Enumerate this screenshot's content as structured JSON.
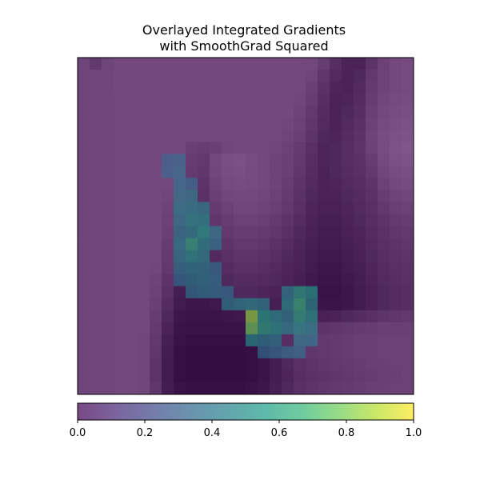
{
  "chart_data": {
    "type": "heatmap",
    "title_lines": [
      "Overlayed Integrated Gradients",
      "with SmoothGrad Squared"
    ],
    "grid": false,
    "colormap": "viridis",
    "overlay_alpha": 0.5,
    "heatmap": {
      "rows": 28,
      "cols": 28,
      "base_values": [
        [
          0.55,
          0.45,
          0.55,
          0.58,
          0.58,
          0.58,
          0.58,
          0.58,
          0.58,
          0.58,
          0.58,
          0.58,
          0.58,
          0.58,
          0.58,
          0.58,
          0.58,
          0.58,
          0.58,
          0.57,
          0.48,
          0.34,
          0.24,
          0.24,
          0.4,
          0.52,
          0.58,
          0.6
        ],
        [
          0.55,
          0.56,
          0.56,
          0.58,
          0.58,
          0.58,
          0.58,
          0.58,
          0.58,
          0.58,
          0.58,
          0.58,
          0.58,
          0.58,
          0.58,
          0.58,
          0.58,
          0.58,
          0.58,
          0.55,
          0.42,
          0.3,
          0.24,
          0.28,
          0.44,
          0.54,
          0.58,
          0.6
        ],
        [
          0.55,
          0.56,
          0.56,
          0.58,
          0.58,
          0.58,
          0.58,
          0.58,
          0.58,
          0.58,
          0.58,
          0.58,
          0.58,
          0.58,
          0.58,
          0.58,
          0.58,
          0.58,
          0.58,
          0.5,
          0.38,
          0.26,
          0.24,
          0.3,
          0.46,
          0.54,
          0.58,
          0.6
        ],
        [
          0.55,
          0.56,
          0.56,
          0.57,
          0.58,
          0.58,
          0.58,
          0.58,
          0.58,
          0.58,
          0.58,
          0.58,
          0.58,
          0.58,
          0.58,
          0.58,
          0.58,
          0.58,
          0.56,
          0.48,
          0.34,
          0.24,
          0.26,
          0.32,
          0.48,
          0.56,
          0.6,
          0.62
        ],
        [
          0.55,
          0.56,
          0.56,
          0.57,
          0.58,
          0.58,
          0.58,
          0.58,
          0.58,
          0.58,
          0.58,
          0.58,
          0.58,
          0.58,
          0.58,
          0.58,
          0.58,
          0.58,
          0.54,
          0.44,
          0.32,
          0.24,
          0.28,
          0.34,
          0.5,
          0.58,
          0.62,
          0.64
        ],
        [
          0.55,
          0.56,
          0.56,
          0.57,
          0.58,
          0.58,
          0.58,
          0.58,
          0.58,
          0.58,
          0.58,
          0.58,
          0.58,
          0.58,
          0.58,
          0.58,
          0.58,
          0.56,
          0.52,
          0.42,
          0.3,
          0.24,
          0.3,
          0.36,
          0.52,
          0.6,
          0.64,
          0.66
        ],
        [
          0.55,
          0.56,
          0.56,
          0.57,
          0.58,
          0.58,
          0.58,
          0.58,
          0.58,
          0.58,
          0.58,
          0.58,
          0.58,
          0.58,
          0.58,
          0.58,
          0.58,
          0.55,
          0.5,
          0.4,
          0.28,
          0.26,
          0.32,
          0.38,
          0.54,
          0.62,
          0.66,
          0.68
        ],
        [
          0.55,
          0.56,
          0.56,
          0.57,
          0.58,
          0.58,
          0.58,
          0.58,
          0.58,
          0.5,
          0.48,
          0.5,
          0.56,
          0.58,
          0.58,
          0.58,
          0.56,
          0.52,
          0.46,
          0.36,
          0.26,
          0.28,
          0.34,
          0.4,
          0.52,
          0.62,
          0.68,
          0.7
        ],
        [
          0.55,
          0.56,
          0.56,
          0.57,
          0.58,
          0.58,
          0.58,
          0.58,
          0.56,
          0.48,
          0.44,
          0.58,
          0.64,
          0.66,
          0.62,
          0.58,
          0.54,
          0.5,
          0.44,
          0.34,
          0.26,
          0.28,
          0.34,
          0.38,
          0.48,
          0.6,
          0.66,
          0.68
        ],
        [
          0.55,
          0.56,
          0.56,
          0.57,
          0.58,
          0.58,
          0.58,
          0.58,
          0.54,
          0.46,
          0.42,
          0.56,
          0.62,
          0.64,
          0.6,
          0.58,
          0.54,
          0.5,
          0.42,
          0.32,
          0.24,
          0.28,
          0.32,
          0.36,
          0.44,
          0.56,
          0.62,
          0.64
        ],
        [
          0.55,
          0.56,
          0.56,
          0.57,
          0.58,
          0.58,
          0.58,
          0.58,
          0.52,
          0.44,
          0.4,
          0.54,
          0.6,
          0.62,
          0.6,
          0.58,
          0.54,
          0.48,
          0.4,
          0.3,
          0.24,
          0.26,
          0.3,
          0.34,
          0.4,
          0.52,
          0.58,
          0.6
        ],
        [
          0.55,
          0.56,
          0.56,
          0.57,
          0.58,
          0.58,
          0.58,
          0.56,
          0.48,
          0.4,
          0.38,
          0.5,
          0.56,
          0.58,
          0.58,
          0.56,
          0.52,
          0.46,
          0.38,
          0.28,
          0.24,
          0.24,
          0.28,
          0.32,
          0.38,
          0.48,
          0.54,
          0.56
        ],
        [
          0.55,
          0.56,
          0.56,
          0.57,
          0.58,
          0.58,
          0.58,
          0.54,
          0.44,
          0.36,
          0.34,
          0.46,
          0.52,
          0.56,
          0.56,
          0.54,
          0.5,
          0.44,
          0.36,
          0.26,
          0.22,
          0.22,
          0.26,
          0.3,
          0.36,
          0.44,
          0.5,
          0.52
        ],
        [
          0.55,
          0.56,
          0.56,
          0.57,
          0.58,
          0.58,
          0.58,
          0.52,
          0.4,
          0.32,
          0.3,
          0.42,
          0.48,
          0.52,
          0.52,
          0.5,
          0.46,
          0.4,
          0.32,
          0.24,
          0.2,
          0.2,
          0.24,
          0.28,
          0.34,
          0.4,
          0.46,
          0.48
        ],
        [
          0.55,
          0.56,
          0.56,
          0.57,
          0.58,
          0.58,
          0.58,
          0.5,
          0.36,
          0.28,
          0.28,
          0.38,
          0.44,
          0.48,
          0.48,
          0.46,
          0.42,
          0.36,
          0.28,
          0.22,
          0.18,
          0.18,
          0.22,
          0.26,
          0.32,
          0.38,
          0.42,
          0.44
        ],
        [
          0.55,
          0.56,
          0.56,
          0.57,
          0.58,
          0.58,
          0.58,
          0.48,
          0.32,
          0.24,
          0.24,
          0.34,
          0.4,
          0.44,
          0.44,
          0.42,
          0.38,
          0.32,
          0.26,
          0.2,
          0.16,
          0.16,
          0.2,
          0.24,
          0.3,
          0.36,
          0.4,
          0.42
        ],
        [
          0.55,
          0.56,
          0.56,
          0.57,
          0.58,
          0.58,
          0.58,
          0.46,
          0.28,
          0.22,
          0.22,
          0.3,
          0.36,
          0.4,
          0.4,
          0.38,
          0.34,
          0.28,
          0.24,
          0.18,
          0.14,
          0.14,
          0.18,
          0.22,
          0.28,
          0.34,
          0.38,
          0.4
        ],
        [
          0.55,
          0.56,
          0.56,
          0.57,
          0.58,
          0.58,
          0.56,
          0.44,
          0.24,
          0.18,
          0.2,
          0.26,
          0.32,
          0.36,
          0.36,
          0.34,
          0.3,
          0.26,
          0.22,
          0.16,
          0.12,
          0.12,
          0.16,
          0.2,
          0.26,
          0.32,
          0.36,
          0.38
        ],
        [
          0.55,
          0.56,
          0.56,
          0.57,
          0.58,
          0.58,
          0.54,
          0.4,
          0.2,
          0.16,
          0.18,
          0.22,
          0.28,
          0.32,
          0.32,
          0.3,
          0.28,
          0.24,
          0.2,
          0.14,
          0.1,
          0.1,
          0.14,
          0.18,
          0.24,
          0.3,
          0.34,
          0.36
        ],
        [
          0.55,
          0.56,
          0.56,
          0.57,
          0.58,
          0.58,
          0.52,
          0.36,
          0.18,
          0.14,
          0.16,
          0.2,
          0.24,
          0.28,
          0.28,
          0.26,
          0.24,
          0.22,
          0.18,
          0.12,
          0.08,
          0.08,
          0.12,
          0.16,
          0.22,
          0.28,
          0.32,
          0.34
        ],
        [
          0.55,
          0.56,
          0.56,
          0.57,
          0.58,
          0.58,
          0.5,
          0.32,
          0.16,
          0.12,
          0.12,
          0.14,
          0.18,
          0.2,
          0.2,
          0.2,
          0.2,
          0.18,
          0.16,
          0.12,
          0.1,
          0.1,
          0.12,
          0.16,
          0.22,
          0.28,
          0.32,
          0.34
        ],
        [
          0.55,
          0.56,
          0.56,
          0.57,
          0.58,
          0.58,
          0.48,
          0.28,
          0.12,
          0.1,
          0.1,
          0.1,
          0.12,
          0.14,
          0.14,
          0.16,
          0.18,
          0.2,
          0.22,
          0.22,
          0.22,
          0.24,
          0.28,
          0.32,
          0.36,
          0.4,
          0.42,
          0.44
        ],
        [
          0.55,
          0.56,
          0.56,
          0.57,
          0.58,
          0.58,
          0.46,
          0.24,
          0.1,
          0.08,
          0.08,
          0.08,
          0.08,
          0.08,
          0.1,
          0.14,
          0.2,
          0.3,
          0.38,
          0.4,
          0.4,
          0.42,
          0.44,
          0.46,
          0.48,
          0.5,
          0.5,
          0.5
        ],
        [
          0.55,
          0.56,
          0.56,
          0.57,
          0.58,
          0.56,
          0.44,
          0.2,
          0.08,
          0.06,
          0.06,
          0.06,
          0.06,
          0.06,
          0.08,
          0.12,
          0.22,
          0.34,
          0.42,
          0.44,
          0.44,
          0.46,
          0.48,
          0.5,
          0.5,
          0.52,
          0.52,
          0.52
        ],
        [
          0.55,
          0.56,
          0.56,
          0.57,
          0.58,
          0.56,
          0.42,
          0.18,
          0.06,
          0.04,
          0.04,
          0.04,
          0.04,
          0.04,
          0.06,
          0.1,
          0.2,
          0.32,
          0.4,
          0.42,
          0.44,
          0.46,
          0.48,
          0.5,
          0.5,
          0.52,
          0.52,
          0.52
        ],
        [
          0.55,
          0.56,
          0.56,
          0.57,
          0.58,
          0.56,
          0.4,
          0.16,
          0.06,
          0.04,
          0.04,
          0.04,
          0.04,
          0.04,
          0.06,
          0.1,
          0.18,
          0.28,
          0.36,
          0.4,
          0.42,
          0.44,
          0.46,
          0.48,
          0.5,
          0.5,
          0.52,
          0.52
        ],
        [
          0.55,
          0.56,
          0.56,
          0.57,
          0.58,
          0.56,
          0.4,
          0.16,
          0.06,
          0.04,
          0.04,
          0.04,
          0.04,
          0.04,
          0.06,
          0.1,
          0.18,
          0.26,
          0.34,
          0.38,
          0.4,
          0.42,
          0.44,
          0.46,
          0.48,
          0.5,
          0.5,
          0.52
        ],
        [
          0.55,
          0.56,
          0.56,
          0.57,
          0.58,
          0.56,
          0.42,
          0.18,
          0.08,
          0.06,
          0.06,
          0.06,
          0.06,
          0.06,
          0.08,
          0.12,
          0.2,
          0.28,
          0.36,
          0.4,
          0.42,
          0.44,
          0.46,
          0.48,
          0.5,
          0.5,
          0.52,
          0.52
        ]
      ],
      "attribution_hotspots": [
        {
          "row": 8,
          "col": 7,
          "value": 0.3
        },
        {
          "row": 8,
          "col": 8,
          "value": 0.34
        },
        {
          "row": 9,
          "col": 7,
          "value": 0.32
        },
        {
          "row": 9,
          "col": 8,
          "value": 0.36
        },
        {
          "row": 10,
          "col": 8,
          "value": 0.38
        },
        {
          "row": 10,
          "col": 9,
          "value": 0.34
        },
        {
          "row": 11,
          "col": 8,
          "value": 0.4
        },
        {
          "row": 11,
          "col": 9,
          "value": 0.42
        },
        {
          "row": 12,
          "col": 8,
          "value": 0.44
        },
        {
          "row": 12,
          "col": 9,
          "value": 0.46
        },
        {
          "row": 12,
          "col": 10,
          "value": 0.44
        },
        {
          "row": 13,
          "col": 8,
          "value": 0.42
        },
        {
          "row": 13,
          "col": 9,
          "value": 0.52
        },
        {
          "row": 13,
          "col": 10,
          "value": 0.5
        },
        {
          "row": 14,
          "col": 8,
          "value": 0.4
        },
        {
          "row": 14,
          "col": 9,
          "value": 0.48
        },
        {
          "row": 14,
          "col": 10,
          "value": 0.56
        },
        {
          "row": 14,
          "col": 11,
          "value": 0.42
        },
        {
          "row": 15,
          "col": 8,
          "value": 0.46
        },
        {
          "row": 15,
          "col": 9,
          "value": 0.62
        },
        {
          "row": 15,
          "col": 10,
          "value": 0.5
        },
        {
          "row": 15,
          "col": 11,
          "value": 0.4
        },
        {
          "row": 16,
          "col": 8,
          "value": 0.44
        },
        {
          "row": 16,
          "col": 9,
          "value": 0.54
        },
        {
          "row": 16,
          "col": 10,
          "value": 0.48
        },
        {
          "row": 17,
          "col": 8,
          "value": 0.4
        },
        {
          "row": 17,
          "col": 9,
          "value": 0.46
        },
        {
          "row": 17,
          "col": 10,
          "value": 0.44
        },
        {
          "row": 17,
          "col": 11,
          "value": 0.36
        },
        {
          "row": 18,
          "col": 8,
          "value": 0.36
        },
        {
          "row": 18,
          "col": 9,
          "value": 0.42
        },
        {
          "row": 18,
          "col": 10,
          "value": 0.44
        },
        {
          "row": 18,
          "col": 11,
          "value": 0.4
        },
        {
          "row": 19,
          "col": 9,
          "value": 0.38
        },
        {
          "row": 19,
          "col": 10,
          "value": 0.42
        },
        {
          "row": 19,
          "col": 11,
          "value": 0.4
        },
        {
          "row": 19,
          "col": 12,
          "value": 0.36
        },
        {
          "row": 20,
          "col": 12,
          "value": 0.42
        },
        {
          "row": 20,
          "col": 13,
          "value": 0.46
        },
        {
          "row": 20,
          "col": 14,
          "value": 0.48
        },
        {
          "row": 20,
          "col": 15,
          "value": 0.44
        },
        {
          "row": 21,
          "col": 14,
          "value": 0.84
        },
        {
          "row": 21,
          "col": 15,
          "value": 0.56
        },
        {
          "row": 21,
          "col": 16,
          "value": 0.5
        },
        {
          "row": 21,
          "col": 17,
          "value": 0.44
        },
        {
          "row": 22,
          "col": 14,
          "value": 0.78
        },
        {
          "row": 22,
          "col": 15,
          "value": 0.6
        },
        {
          "row": 22,
          "col": 16,
          "value": 0.54
        },
        {
          "row": 22,
          "col": 17,
          "value": 0.46
        },
        {
          "row": 23,
          "col": 14,
          "value": 0.5
        },
        {
          "row": 23,
          "col": 15,
          "value": 0.44
        },
        {
          "row": 23,
          "col": 16,
          "value": 0.42
        },
        {
          "row": 19,
          "col": 17,
          "value": 0.44
        },
        {
          "row": 19,
          "col": 18,
          "value": 0.58
        },
        {
          "row": 19,
          "col": 19,
          "value": 0.54
        },
        {
          "row": 20,
          "col": 17,
          "value": 0.5
        },
        {
          "row": 20,
          "col": 18,
          "value": 0.66
        },
        {
          "row": 20,
          "col": 19,
          "value": 0.48
        },
        {
          "row": 21,
          "col": 18,
          "value": 0.6
        },
        {
          "row": 21,
          "col": 19,
          "value": 0.52
        },
        {
          "row": 22,
          "col": 18,
          "value": 0.5
        },
        {
          "row": 22,
          "col": 19,
          "value": 0.46
        },
        {
          "row": 23,
          "col": 18,
          "value": 0.42
        },
        {
          "row": 23,
          "col": 19,
          "value": 0.4
        },
        {
          "row": 24,
          "col": 15,
          "value": 0.36
        },
        {
          "row": 24,
          "col": 16,
          "value": 0.36
        },
        {
          "row": 24,
          "col": 17,
          "value": 0.36
        },
        {
          "row": 24,
          "col": 18,
          "value": 0.36
        }
      ]
    },
    "colorbar": {
      "range": [
        0.0,
        1.0
      ],
      "ticks": [
        0.0,
        0.2,
        0.4,
        0.6,
        0.8,
        1.0
      ],
      "tick_labels": [
        "0.0",
        "0.2",
        "0.4",
        "0.6",
        "0.8",
        "1.0"
      ]
    },
    "colors": {
      "viridis_stops": [
        "#440154",
        "#482878",
        "#3e4989",
        "#31688e",
        "#26828e",
        "#1f9e89",
        "#35b779",
        "#6ece58",
        "#b5de2b",
        "#fde725"
      ],
      "base_dark": "#2b0b3a",
      "base_light": "#b68ebc"
    }
  }
}
